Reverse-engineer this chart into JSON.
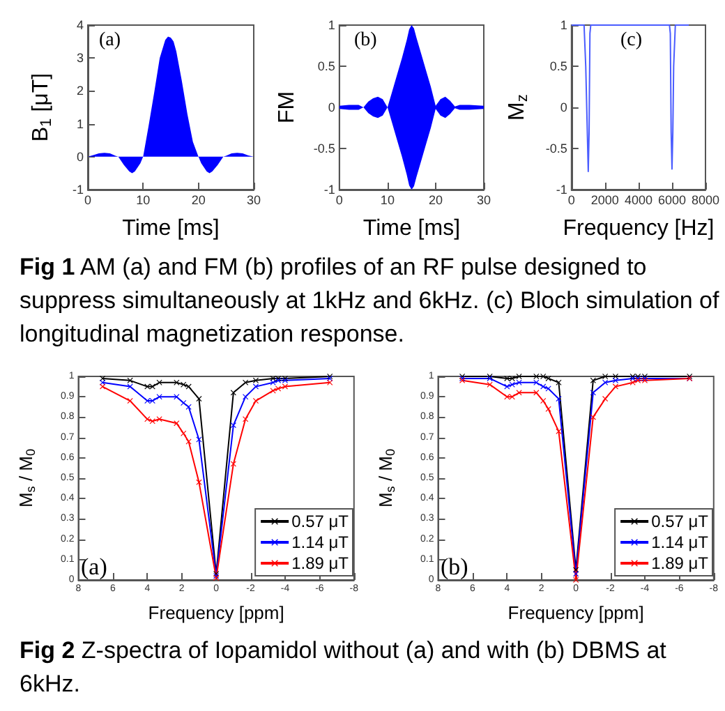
{
  "chart_data": [
    {
      "type": "area",
      "xlabel": "Time [ms]",
      "ylabel": "B$_{1}$ [μT]",
      "annotations": [
        "(a)",
        "Fig 1 AM (a) and FM (b) profiles of an RF pulse designed to suppress simultaneously at 1kHz and 6kHz. (c) Bloch simulation of longitudinal magnetization response."
      ],
      "x": [
        0,
        1,
        2,
        3,
        4,
        5,
        5.5,
        6.5,
        7.5,
        8,
        8.5,
        9.5,
        10,
        11,
        12,
        13,
        14,
        14.5,
        15,
        15.5,
        16,
        17,
        18,
        19,
        20,
        20.5,
        21.5,
        22,
        22.5,
        23.5,
        24.5,
        25,
        26,
        27,
        28,
        29,
        30
      ],
      "series": [
        {
          "color": "#0000ff",
          "values": [
            0,
            0.05,
            0.1,
            0.12,
            0.1,
            0.03,
            0,
            -0.25,
            -0.45,
            -0.5,
            -0.45,
            -0.2,
            0,
            0.95,
            1.95,
            3.0,
            3.55,
            3.65,
            3.62,
            3.5,
            3.2,
            2.3,
            1.3,
            0.45,
            0,
            -0.2,
            -0.45,
            -0.5,
            -0.45,
            -0.25,
            0,
            0.03,
            0.1,
            0.12,
            0.1,
            0.04,
            0
          ]
        }
      ],
      "xlim": [
        0,
        30
      ],
      "xticks": [
        0,
        10,
        20,
        30
      ],
      "ylim": [
        -1,
        4
      ],
      "yticks": [
        -1,
        0,
        1,
        2,
        3,
        4
      ]
    },
    {
      "type": "line",
      "xlabel": "Time [ms]",
      "ylabel": "FM",
      "annotations": [
        "(b)"
      ],
      "x": [
        0,
        2,
        4,
        5,
        6,
        7,
        8,
        9,
        10,
        11,
        12,
        13,
        14,
        14.5,
        15,
        15.5,
        16,
        17,
        18,
        19,
        20,
        21,
        22,
        23,
        24,
        25,
        27,
        30
      ],
      "series": [
        {
          "color": "#0000ff",
          "values": [
            null,
            null,
            null,
            null,
            null,
            null,
            null,
            null,
            null,
            null,
            null,
            null,
            null,
            null,
            null,
            null,
            null,
            null,
            null,
            null,
            null,
            null,
            null,
            null,
            null,
            null,
            null,
            null
          ],
          "upper": [
            0.02,
            0.03,
            0.03,
            0,
            0.07,
            0.11,
            0.13,
            0.1,
            0,
            0.2,
            0.4,
            0.6,
            0.82,
            0.95,
            1,
            0.96,
            0.85,
            0.65,
            0.45,
            0.25,
            0.02,
            0.1,
            0.13,
            0.08,
            0.01,
            0.03,
            0.03,
            0.02
          ],
          "lower": [
            -0.02,
            -0.03,
            -0.03,
            0,
            -0.07,
            -0.11,
            -0.13,
            -0.1,
            0,
            -0.2,
            -0.4,
            -0.6,
            -0.82,
            -0.95,
            -1,
            -0.96,
            -0.85,
            -0.65,
            -0.45,
            -0.25,
            -0.02,
            -0.1,
            -0.13,
            -0.08,
            -0.01,
            -0.03,
            -0.03,
            -0.02
          ]
        }
      ],
      "xlim": [
        0,
        30
      ],
      "xticks": [
        0,
        10,
        20,
        30
      ],
      "ylim": [
        -1,
        1
      ],
      "yticks": [
        -1,
        -0.5,
        0,
        0.5,
        1
      ]
    },
    {
      "type": "line",
      "xlabel": "Frequency [Hz]",
      "ylabel": "M$_{z}$",
      "annotations": [
        "(c)"
      ],
      "x": [
        0,
        750,
        850,
        950,
        1000,
        1050,
        1100,
        1150,
        5850,
        5900,
        5950,
        6000,
        6050,
        6100,
        6200,
        7000
      ],
      "series": [
        {
          "color": "#4a5cff",
          "values": [
            1,
            1,
            0.5,
            -0.35,
            -0.78,
            -0.3,
            0.9,
            1,
            1,
            0.9,
            -0.3,
            -0.75,
            -0.3,
            0.5,
            1,
            1
          ]
        }
      ],
      "xlim": [
        0,
        8000
      ],
      "xticks": [
        0,
        2000,
        4000,
        6000,
        8000
      ],
      "ylim": [
        -1,
        1
      ],
      "yticks": [
        -1,
        -0.5,
        0,
        0.5,
        1
      ]
    },
    {
      "type": "line",
      "xlabel": "Frequency [ppm]",
      "ylabel": "M$_{s}$ / M$_{0}$",
      "annotations": [
        "(a)",
        "Fig 2 Z-spectra of Iopamidol without (a) and with (b) DBMS at 6kHz."
      ],
      "marker": "cross",
      "legend": "bottom right",
      "x": [
        6.6,
        5,
        4,
        3.7,
        3.3,
        2.3,
        1.9,
        1.6,
        1,
        0,
        -1,
        -1.7,
        -2.3,
        -3.3,
        -3.6,
        -4,
        -6.6
      ],
      "series": [
        {
          "name": "0.57 μT",
          "color": "#000000",
          "values": [
            0.99,
            0.98,
            0.95,
            0.95,
            0.97,
            0.97,
            0.96,
            0.95,
            0.89,
            0.03,
            0.92,
            0.97,
            0.98,
            0.99,
            0.99,
            0.99,
            1.0
          ]
        },
        {
          "name": "1.14 μT",
          "color": "#0000ff",
          "values": [
            0.97,
            0.95,
            0.88,
            0.88,
            0.9,
            0.9,
            0.87,
            0.85,
            0.69,
            0.02,
            0.76,
            0.9,
            0.95,
            0.97,
            0.98,
            0.98,
            0.99
          ]
        },
        {
          "name": "1.89 μT",
          "color": "#ff0000",
          "values": [
            0.95,
            0.88,
            0.79,
            0.78,
            0.79,
            0.77,
            0.72,
            0.68,
            0.48,
            0.01,
            0.57,
            0.79,
            0.88,
            0.93,
            0.94,
            0.95,
            0.97
          ]
        }
      ],
      "xlim": [
        8,
        -8
      ],
      "xticks": [
        8,
        6,
        4,
        2,
        0,
        -2,
        -4,
        -6,
        -8
      ],
      "ylim": [
        0,
        1
      ],
      "yticks": [
        0,
        0.1,
        0.2,
        0.3,
        0.4,
        0.5,
        0.6,
        0.7,
        0.8,
        0.9,
        1
      ]
    },
    {
      "type": "line",
      "xlabel": "Frequency [ppm]",
      "ylabel": "M$_{s}$ / M$_{0}$",
      "annotations": [
        "(b)"
      ],
      "marker": "cross",
      "legend": "bottom right",
      "x": [
        6.6,
        5,
        4,
        3.7,
        3.3,
        2.3,
        1.9,
        1.6,
        1,
        0,
        -1,
        -1.7,
        -2.3,
        -3.3,
        -3.6,
        -4,
        -6.6
      ],
      "series": [
        {
          "name": "0.57 μT",
          "color": "#000000",
          "values": [
            1.0,
            1.0,
            0.99,
            0.99,
            1.0,
            1.0,
            1.0,
            0.99,
            0.97,
            0.05,
            0.98,
            1.0,
            1.0,
            1.0,
            1.0,
            1.0,
            1.0
          ]
        },
        {
          "name": "1.14 μT",
          "color": "#0000ff",
          "values": [
            0.99,
            0.99,
            0.95,
            0.96,
            0.97,
            0.97,
            0.95,
            0.94,
            0.89,
            0.03,
            0.92,
            0.97,
            0.98,
            0.99,
            0.99,
            0.99,
            0.99
          ]
        },
        {
          "name": "1.89 μT",
          "color": "#ff0000",
          "values": [
            0.98,
            0.96,
            0.9,
            0.9,
            0.92,
            0.92,
            0.88,
            0.84,
            0.73,
            0,
            0.8,
            0.89,
            0.95,
            0.97,
            0.98,
            0.98,
            0.99
          ]
        }
      ],
      "xlim": [
        8,
        -8
      ],
      "xticks": [
        8,
        6,
        4,
        2,
        0,
        -2,
        -4,
        -6,
        -8
      ],
      "ylim": [
        0,
        1
      ],
      "yticks": [
        0,
        0.1,
        0.2,
        0.3,
        0.4,
        0.5,
        0.6,
        0.7,
        0.8,
        0.9,
        1
      ]
    }
  ]
}
